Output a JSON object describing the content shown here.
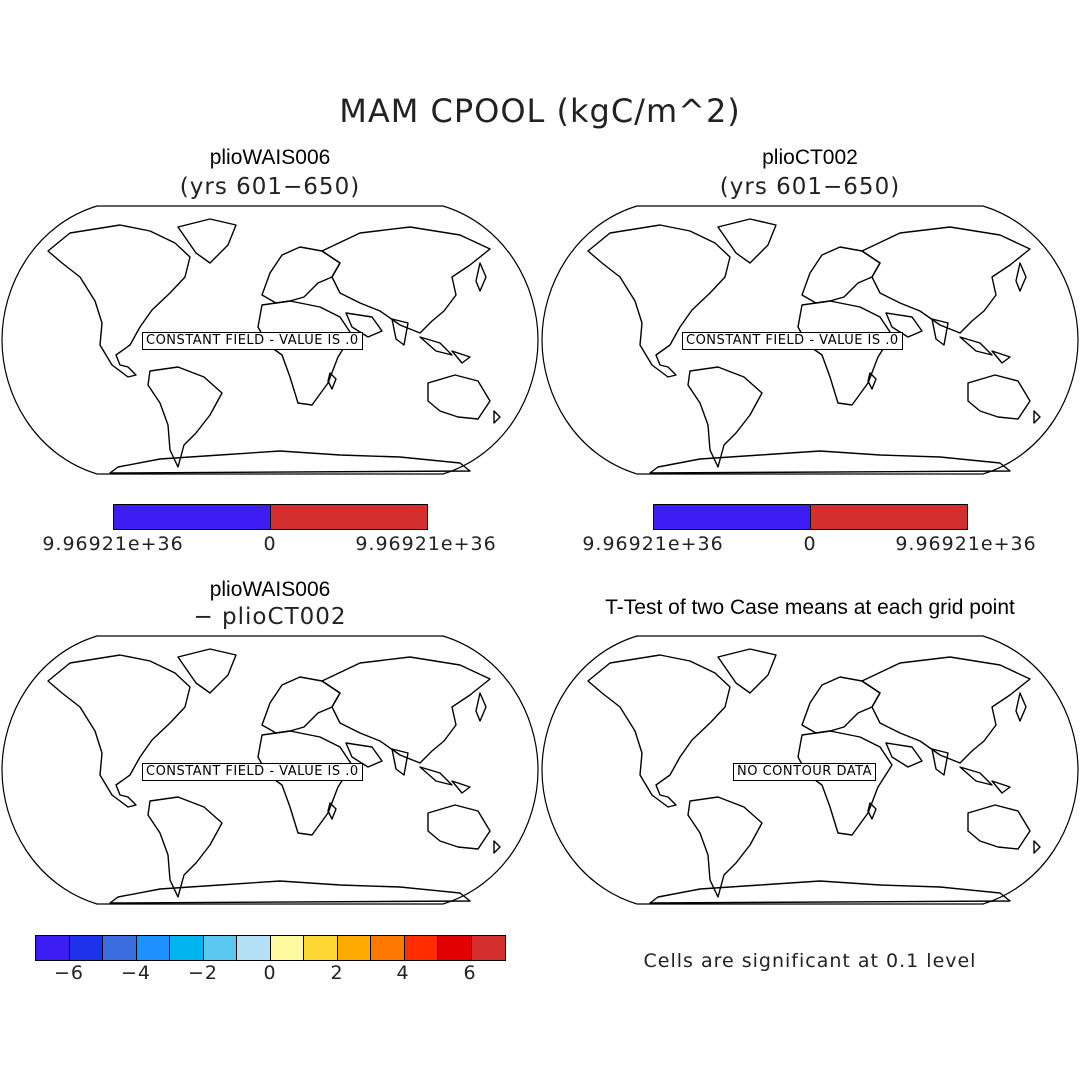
{
  "title": "MAM CPOOL (kgC/m^2)",
  "panels": [
    {
      "title": "plioWAIS006",
      "subtitle": "(yrs 601−650)",
      "label": "CONSTANT FIELD - VALUE IS .0"
    },
    {
      "title": "plioCT002",
      "subtitle": "(yrs 601−650)",
      "label": "CONSTANT FIELD - VALUE IS .0"
    },
    {
      "title": "plioWAIS006",
      "subtitle": "− plioCT002",
      "label": "CONSTANT FIELD - VALUE IS .0"
    },
    {
      "title": "T-Test of two Case means at each grid point",
      "subtitle": "",
      "label": "NO CONTOUR DATA"
    }
  ],
  "colorbars": {
    "top_left": {
      "colors": [
        "#3c1ef5",
        "#d42f2f"
      ],
      "labels": [
        "9.96921e+36",
        "0",
        "9.96921e+36"
      ]
    },
    "top_right": {
      "colors": [
        "#3c1ef5",
        "#d42f2f"
      ],
      "labels": [
        "9.96921e+36",
        "0",
        "9.96921e+36"
      ]
    },
    "bottom": {
      "colors": [
        "#3c1ef5",
        "#1e32eb",
        "#3c6ee1",
        "#1e90ff",
        "#00b4f0",
        "#5ac8f0",
        "#b4e1f5",
        "#fffaa0",
        "#ffd732",
        "#ffaa00",
        "#ff7800",
        "#ff2d00",
        "#e10000",
        "#d42f2f"
      ],
      "labels": [
        "−6",
        "−4",
        "−2",
        "0",
        "2",
        "4",
        "6"
      ]
    }
  },
  "significance_note": "Cells are significant at 0.1 level"
}
